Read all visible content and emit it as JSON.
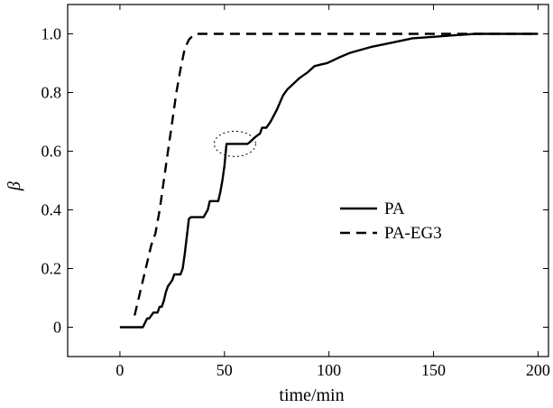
{
  "chart_data": {
    "type": "line",
    "title": "",
    "xlabel": "time/min",
    "ylabel": "β",
    "xlim": [
      -25,
      205
    ],
    "ylim": [
      -0.1,
      1.1
    ],
    "xticks": [
      0,
      50,
      100,
      150,
      200
    ],
    "yticks": [
      0,
      0.2,
      0.4,
      0.6,
      0.8,
      1.0
    ],
    "xtick_labels": [
      "0",
      "50",
      "100",
      "150",
      "200"
    ],
    "ytick_labels": [
      "0",
      "0.2",
      "0.4",
      "0.6",
      "0.8",
      "1.0"
    ],
    "grid": false,
    "legend_position": "right-middle",
    "series": [
      {
        "name": "PA",
        "line_style": "solid",
        "color": "#000000",
        "x": [
          0,
          9,
          11,
          13,
          14,
          16,
          18,
          19,
          20,
          21,
          22,
          23,
          24,
          25,
          26,
          27,
          29,
          30,
          31,
          32,
          33,
          34,
          35,
          36,
          38,
          40,
          42,
          43,
          45,
          47,
          48,
          49,
          50,
          51,
          52,
          53,
          55,
          56,
          57,
          58,
          60,
          61,
          62,
          65,
          67,
          68,
          70,
          72,
          75,
          78,
          80,
          83,
          86,
          90,
          93,
          96,
          99,
          102,
          105,
          110,
          115,
          120,
          130,
          140,
          150,
          160,
          170,
          180,
          190,
          200
        ],
        "y": [
          0,
          0,
          0,
          0.03,
          0.03,
          0.05,
          0.05,
          0.07,
          0.07,
          0.09,
          0.12,
          0.14,
          0.15,
          0.16,
          0.18,
          0.18,
          0.18,
          0.2,
          0.25,
          0.31,
          0.37,
          0.375,
          0.375,
          0.375,
          0.375,
          0.375,
          0.4,
          0.43,
          0.43,
          0.43,
          0.46,
          0.5,
          0.55,
          0.625,
          0.625,
          0.625,
          0.625,
          0.625,
          0.625,
          0.625,
          0.625,
          0.625,
          0.63,
          0.65,
          0.66,
          0.68,
          0.68,
          0.7,
          0.74,
          0.79,
          0.81,
          0.83,
          0.85,
          0.87,
          0.89,
          0.895,
          0.9,
          0.91,
          0.92,
          0.935,
          0.945,
          0.955,
          0.97,
          0.985,
          0.99,
          0.995,
          1.0,
          1.0,
          1.0,
          1.0
        ]
      },
      {
        "name": "PA-EG3",
        "line_style": "dashed",
        "color": "#000000",
        "x": [
          7,
          10,
          13,
          15,
          17,
          19,
          21,
          23,
          25,
          27,
          29,
          31,
          33,
          35,
          37,
          40,
          50,
          60,
          80,
          100,
          150,
          200
        ],
        "y": [
          0.04,
          0.13,
          0.22,
          0.28,
          0.32,
          0.4,
          0.5,
          0.6,
          0.7,
          0.8,
          0.88,
          0.95,
          0.98,
          0.995,
          1.0,
          1.0,
          1.0,
          1.0,
          1.0,
          1.0,
          1.0,
          1.0
        ]
      }
    ]
  }
}
